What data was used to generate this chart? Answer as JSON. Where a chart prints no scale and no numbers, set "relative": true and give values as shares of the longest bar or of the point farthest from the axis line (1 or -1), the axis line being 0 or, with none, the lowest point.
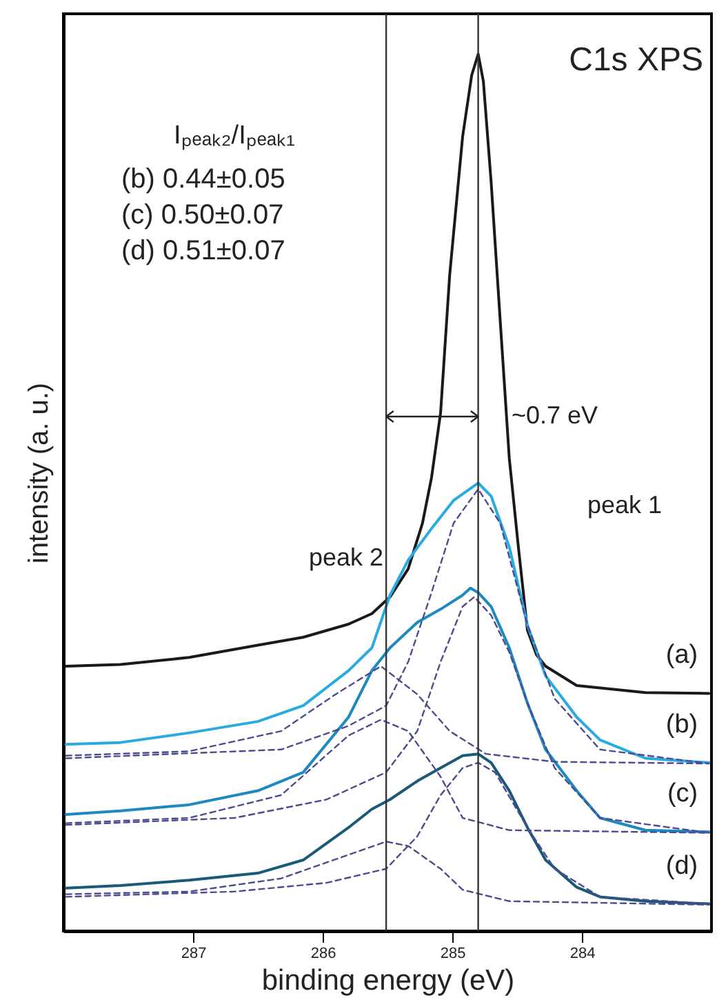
{
  "chart_data": {
    "type": "line",
    "title": "C1s XPS",
    "xlabel": "binding energy (eV)",
    "ylabel": "intensity (a. u.)",
    "xlim": [
      288,
      283
    ],
    "xticks": [
      287,
      286,
      285,
      284
    ],
    "relative": true,
    "tick_labels": "x",
    "grid": false,
    "marker": "none",
    "series": [
      {
        "name": "(a)",
        "color": "#1a1a1a",
        "line_style": "solid",
        "x": [
          287.98,
          287.56,
          287.03,
          286.5,
          286.15,
          285.8,
          285.62,
          285.48,
          285.34,
          285.23,
          285.16,
          285.09,
          285.02,
          284.92,
          284.85,
          284.8,
          284.76,
          284.7,
          284.63,
          284.56,
          284.49,
          284.42,
          284.35,
          284.28,
          284.04,
          283.51,
          283.02
        ],
        "values": [
          0.302,
          0.304,
          0.312,
          0.326,
          0.335,
          0.35,
          0.362,
          0.381,
          0.413,
          0.465,
          0.517,
          0.591,
          0.748,
          0.906,
          0.976,
          1.0,
          0.969,
          0.854,
          0.696,
          0.539,
          0.438,
          0.343,
          0.315,
          0.302,
          0.28,
          0.272,
          0.271
        ]
      },
      {
        "name": "(b)",
        "color": "#29abe2",
        "line_style": "solid",
        "x": [
          287.98,
          287.56,
          287.03,
          286.5,
          286.15,
          285.8,
          285.62,
          285.48,
          285.34,
          285.16,
          284.99,
          284.8,
          284.7,
          284.56,
          284.42,
          284.28,
          284.04,
          283.86,
          283.51,
          283.02
        ],
        "values": [
          0.213,
          0.215,
          0.226,
          0.239,
          0.257,
          0.297,
          0.323,
          0.383,
          0.423,
          0.459,
          0.491,
          0.511,
          0.496,
          0.438,
          0.349,
          0.291,
          0.244,
          0.218,
          0.197,
          0.192
        ]
      },
      {
        "name": "(c)",
        "color": "#1e88c0",
        "line_style": "solid",
        "x": [
          287.98,
          287.56,
          287.03,
          286.5,
          286.15,
          285.8,
          285.62,
          285.48,
          285.27,
          285.09,
          284.92,
          284.86,
          284.8,
          284.7,
          284.56,
          284.42,
          284.28,
          284.04,
          283.86,
          283.51,
          283.02
        ],
        "values": [
          0.133,
          0.137,
          0.144,
          0.16,
          0.181,
          0.244,
          0.297,
          0.323,
          0.352,
          0.367,
          0.383,
          0.391,
          0.386,
          0.37,
          0.323,
          0.26,
          0.207,
          0.16,
          0.129,
          0.115,
          0.113
        ]
      },
      {
        "name": "(d)",
        "color": "#1a5a78",
        "line_style": "solid",
        "x": [
          287.98,
          287.56,
          287.03,
          286.5,
          286.15,
          285.8,
          285.62,
          285.48,
          285.27,
          285.09,
          284.92,
          284.8,
          284.7,
          284.56,
          284.42,
          284.28,
          284.04,
          283.86,
          283.51,
          283.02
        ],
        "values": [
          0.049,
          0.052,
          0.058,
          0.066,
          0.081,
          0.118,
          0.139,
          0.15,
          0.171,
          0.186,
          0.2,
          0.202,
          0.192,
          0.16,
          0.118,
          0.081,
          0.05,
          0.039,
          0.034,
          0.031
        ]
      },
      {
        "color": "#4b4b8f",
        "line_style": "dashed",
        "x": [
          287.98,
          287.03,
          286.32,
          285.9,
          285.55,
          285.27,
          285.02,
          284.74,
          284.21,
          283.02
        ],
        "values": [
          0.2,
          0.205,
          0.228,
          0.27,
          0.302,
          0.27,
          0.228,
          0.202,
          0.193,
          0.191
        ]
      },
      {
        "color": "#4b4b8f",
        "line_style": "dashed",
        "x": [
          287.98,
          286.32,
          285.8,
          285.51,
          285.34,
          285.16,
          284.99,
          284.8,
          284.63,
          284.42,
          284.21,
          283.86,
          283.02
        ],
        "values": [
          0.197,
          0.207,
          0.234,
          0.257,
          0.307,
          0.386,
          0.465,
          0.504,
          0.465,
          0.349,
          0.265,
          0.207,
          0.191
        ]
      },
      {
        "color": "#4b4b8f",
        "line_style": "dashed",
        "x": [
          287.98,
          287.03,
          286.32,
          285.8,
          285.55,
          285.34,
          285.09,
          284.92,
          284.56,
          283.02
        ],
        "values": [
          0.123,
          0.129,
          0.155,
          0.223,
          0.241,
          0.228,
          0.176,
          0.129,
          0.115,
          0.112
        ]
      },
      {
        "color": "#4b4b8f",
        "line_style": "dashed",
        "x": [
          287.98,
          286.68,
          285.97,
          285.51,
          285.27,
          285.09,
          284.92,
          284.83,
          284.7,
          284.56,
          284.42,
          284.21,
          283.86,
          283.02
        ],
        "values": [
          0.121,
          0.129,
          0.15,
          0.181,
          0.228,
          0.307,
          0.37,
          0.381,
          0.36,
          0.318,
          0.26,
          0.186,
          0.129,
          0.112
        ]
      },
      {
        "color": "#4b4b8f",
        "line_style": "dashed",
        "x": [
          287.98,
          287.03,
          286.32,
          285.8,
          285.51,
          285.34,
          285.09,
          284.92,
          284.56,
          283.02
        ],
        "values": [
          0.042,
          0.045,
          0.06,
          0.087,
          0.102,
          0.097,
          0.071,
          0.047,
          0.034,
          0.03
        ]
      },
      {
        "color": "#4b4b8f",
        "line_style": "dashed",
        "x": [
          287.98,
          286.68,
          285.97,
          285.51,
          285.27,
          285.09,
          284.92,
          284.8,
          284.67,
          284.42,
          284.21,
          283.86,
          283.02
        ],
        "values": [
          0.039,
          0.045,
          0.055,
          0.071,
          0.108,
          0.155,
          0.186,
          0.192,
          0.181,
          0.118,
          0.071,
          0.039,
          0.031
        ]
      }
    ],
    "ref_lines": [
      {
        "axis": "x",
        "value": 285.51,
        "color": "#333333"
      },
      {
        "axis": "x",
        "value": 284.8,
        "color": "#333333"
      }
    ],
    "annotations": [
      "peak 2",
      "peak 1",
      "~0.7 eV",
      "Iₚₑₐₖ₂/Iₚₑₐₖ₁",
      "(b)    0.44±0.05",
      "(c)    0.50±0.07",
      "(d)    0.51±0.07"
    ]
  }
}
